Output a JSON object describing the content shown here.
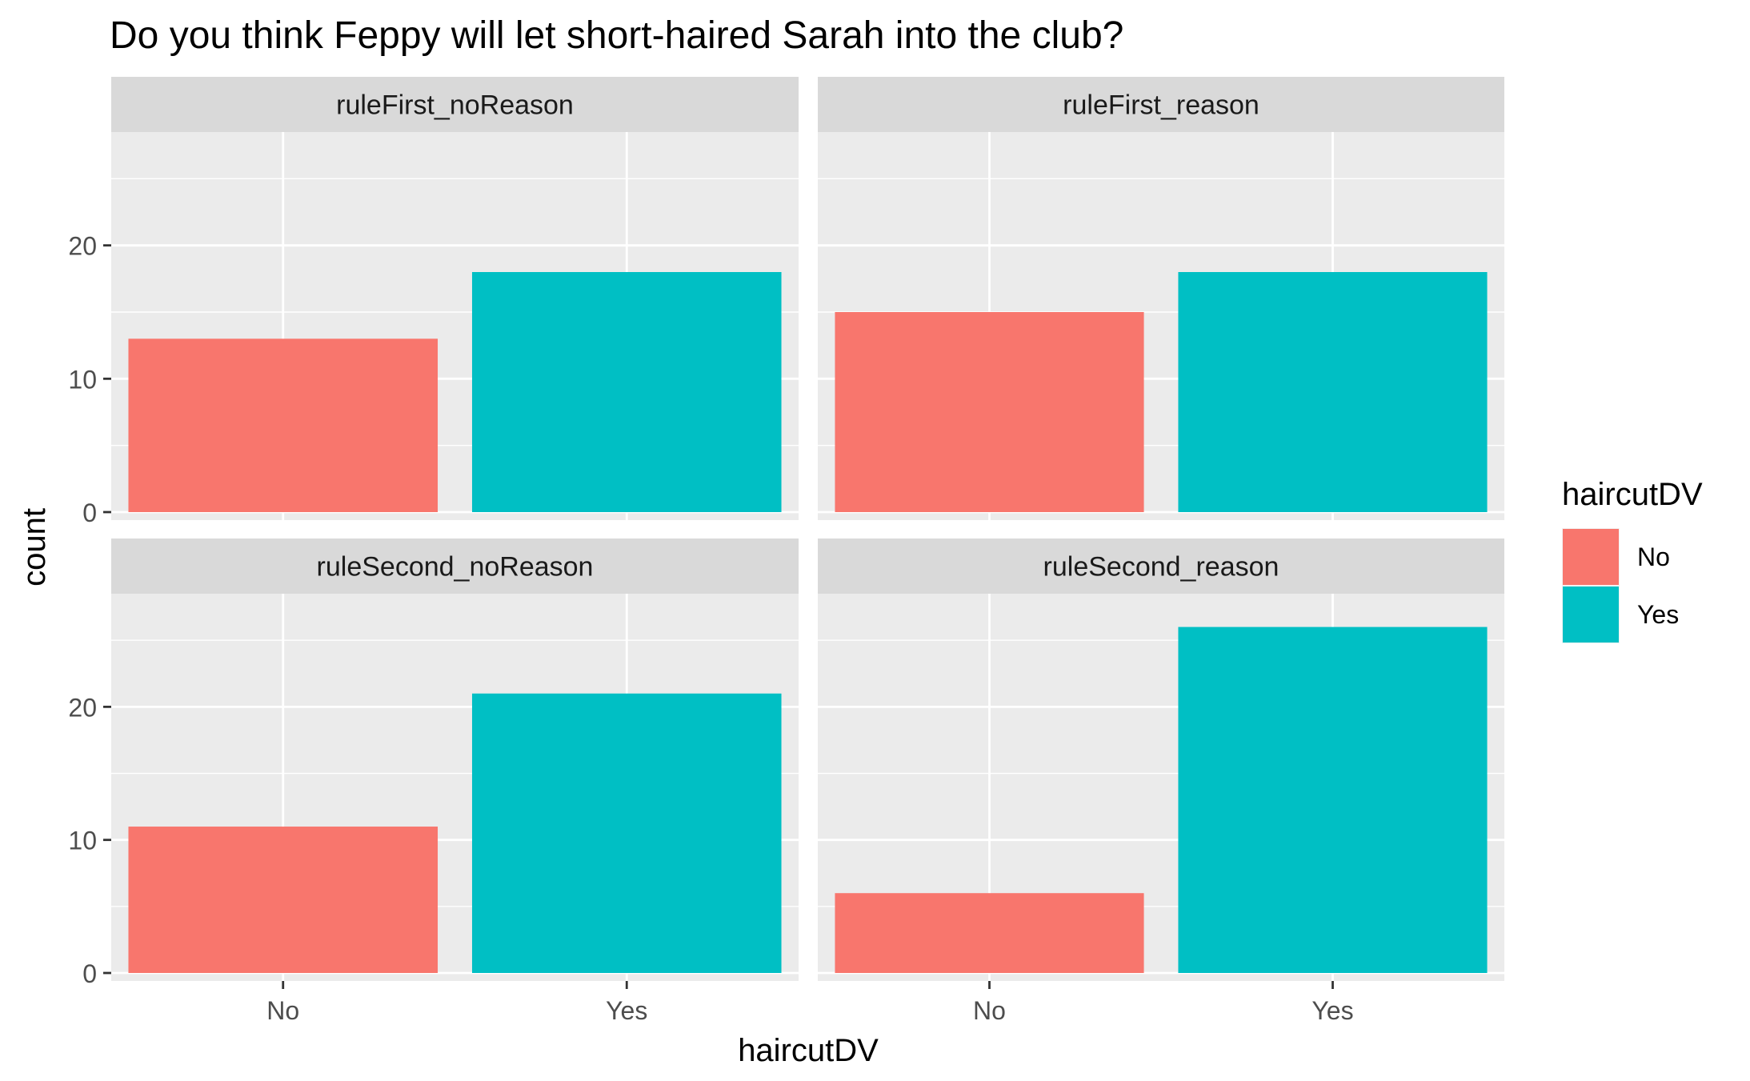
{
  "chart_data": {
    "type": "bar",
    "title": "Do you think Feppy will let short-haired Sarah into the club?",
    "xlabel": "haircutDV",
    "ylabel": "count",
    "categories": [
      "No",
      "Yes"
    ],
    "yticks": [
      "0",
      "10",
      "20"
    ],
    "ylim": [
      0,
      28.5
    ],
    "grid": true,
    "legend": {
      "title": "haircutDV",
      "position": "right",
      "entries": [
        {
          "label": "No",
          "color": "#F8766D"
        },
        {
          "label": "Yes",
          "color": "#00BFC4"
        }
      ]
    },
    "facets": [
      {
        "label": "ruleFirst_noReason",
        "values": [
          13,
          18
        ]
      },
      {
        "label": "ruleFirst_reason",
        "values": [
          15,
          18
        ]
      },
      {
        "label": "ruleSecond_noReason",
        "values": [
          11,
          21
        ]
      },
      {
        "label": "ruleSecond_reason",
        "values": [
          6,
          26
        ]
      }
    ]
  }
}
